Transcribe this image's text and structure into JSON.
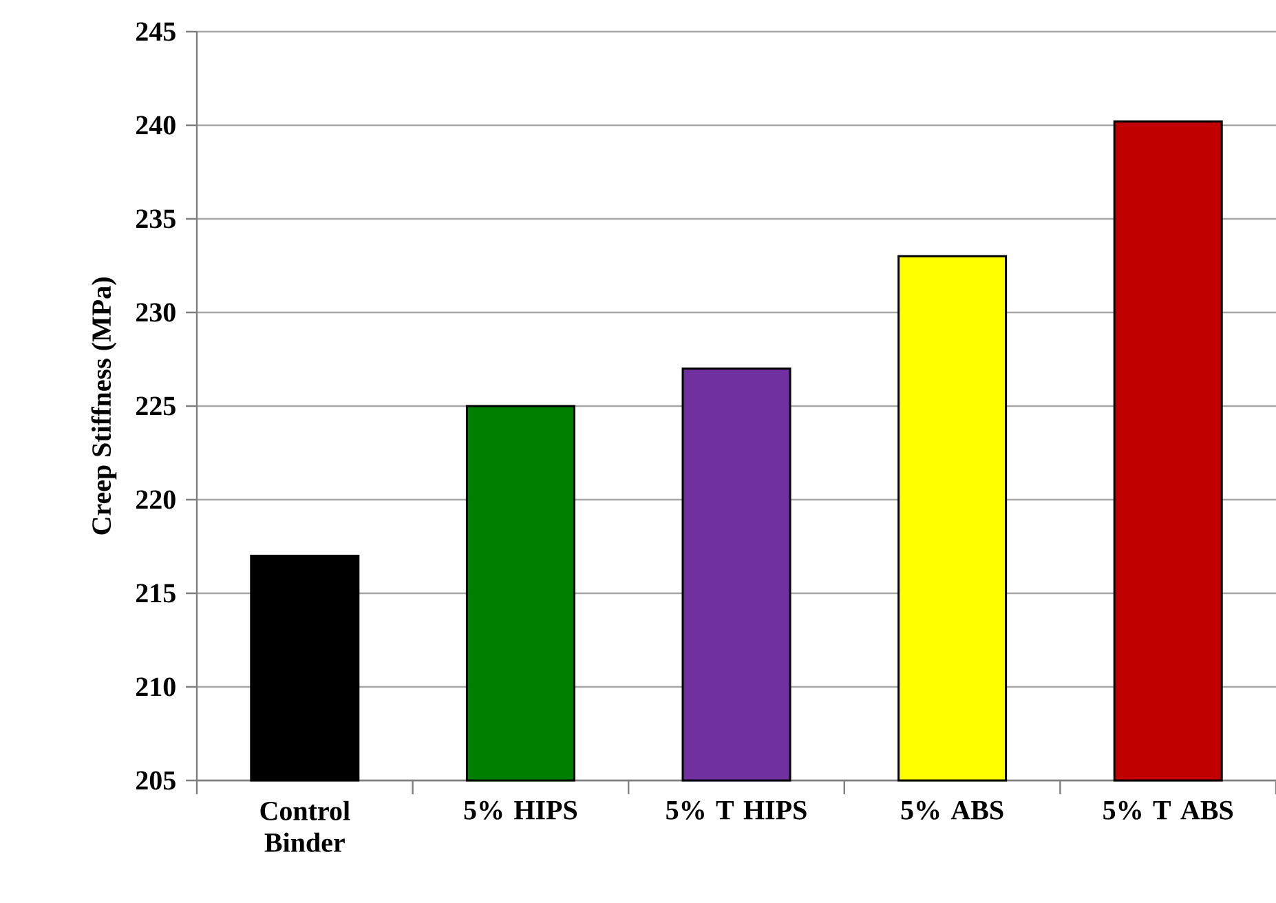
{
  "chart_data": {
    "type": "bar",
    "ylabel": "Creep Stiffness (MPa)",
    "categories": [
      "Control Binder",
      "5% HIPS",
      "5% T HIPS",
      "5% ABS",
      "5% T ABS"
    ],
    "values": [
      217,
      225,
      227,
      233,
      240.2
    ],
    "colors": [
      "#000000",
      "#008000",
      "#7030a0",
      "#ffff00",
      "#c00000"
    ],
    "ylim": [
      205,
      245
    ],
    "yticks": [
      205,
      210,
      215,
      220,
      225,
      230,
      235,
      240,
      245
    ],
    "grid": "y"
  }
}
